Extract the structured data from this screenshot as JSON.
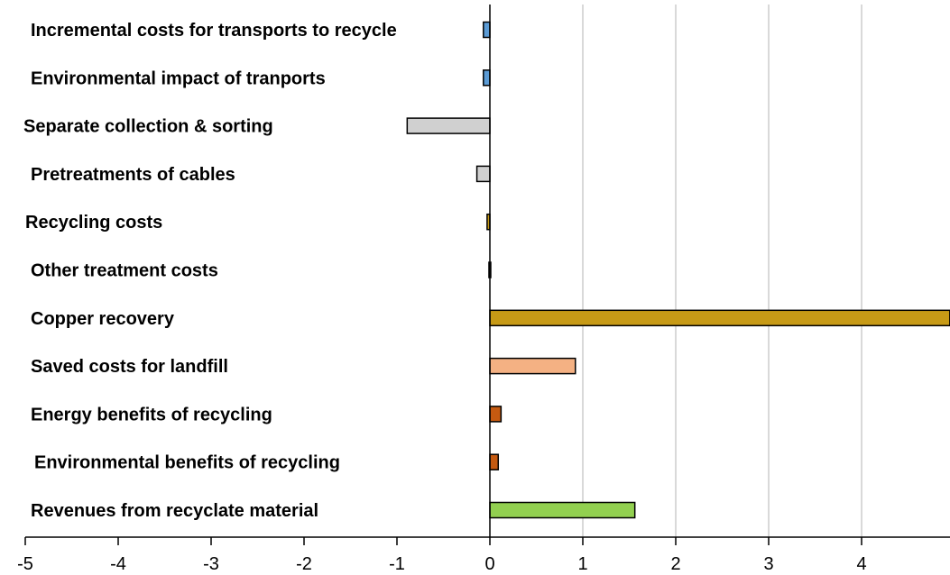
{
  "chart_data": {
    "type": "bar",
    "orientation": "horizontal",
    "title": "",
    "xlabel": "",
    "ylabel": "",
    "xlim": [
      -5,
      4.95
    ],
    "x_ticks": [
      -5,
      -4,
      -3,
      -2,
      -1,
      0,
      1,
      2,
      3,
      4
    ],
    "x_tick_labels": [
      "-5",
      "-4",
      "-3",
      "-2",
      "-1",
      "0",
      "1",
      "2",
      "3",
      "4"
    ],
    "grid": true,
    "legend": "none",
    "categories": [
      "Incremental costs for transports to recycle",
      "Environmental impact of tranports",
      "Separate collection & sorting",
      "Pretreatments of cables",
      "Recycling costs",
      "Other treatment costs",
      "Copper recovery",
      "Saved costs for landfill",
      "Energy benefits of recycling",
      "Environmental benefits of recycling",
      "Revenues from recyclate material"
    ],
    "values": [
      -0.07,
      -0.07,
      -0.89,
      -0.14,
      -0.03,
      -0.01,
      4.95,
      0.92,
      0.12,
      0.09,
      1.56
    ],
    "colors": [
      "#5b9bd5",
      "#5b9bd5",
      "#d0d0d0",
      "#d0d0d0",
      "#c79a16",
      "#c79a16",
      "#c79a16",
      "#f4b183",
      "#c55a11",
      "#c55a11",
      "#92d050"
    ]
  }
}
